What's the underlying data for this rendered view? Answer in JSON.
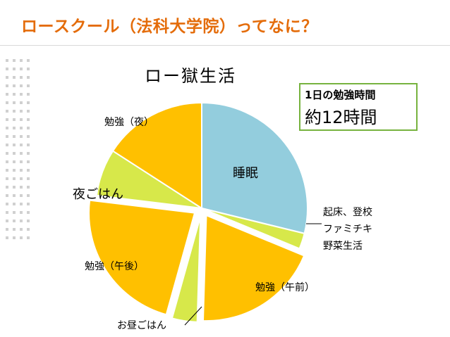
{
  "slide": {
    "title": "ロースクール（法科大学院）ってなに？"
  },
  "info_box": {
    "line1": "1日の勉強時間",
    "line2": "約12時間",
    "border_color": "#77b33f"
  },
  "chart_data": {
    "type": "pie",
    "title": "ロー獄生活",
    "unit": "hours",
    "start_angle_deg": 0,
    "direction": "clockwise",
    "slices": [
      {
        "label": "睡眠",
        "value": 6.0,
        "color": "#93cddd",
        "exploded": false
      },
      {
        "label": "起床、登校\nファミチキ\n野菜生活",
        "value": 0.5,
        "color": "#d7e84a",
        "exploded": false
      },
      {
        "label": "勉強（午前）",
        "value": 4.0,
        "color": "#ffc000",
        "exploded": true
      },
      {
        "label": "お昼ごはん",
        "value": 0.8,
        "color": "#d7e84a",
        "exploded": true
      },
      {
        "label": "勉強（午後）",
        "value": 4.7,
        "color": "#ffc000",
        "exploded": true
      },
      {
        "label": "夜ごはん",
        "value": 1.5,
        "color": "#d7e84a",
        "exploded": false
      },
      {
        "label": "勉強（夜）",
        "value": 3.3,
        "color": "#ffc000",
        "exploded": false
      }
    ]
  }
}
